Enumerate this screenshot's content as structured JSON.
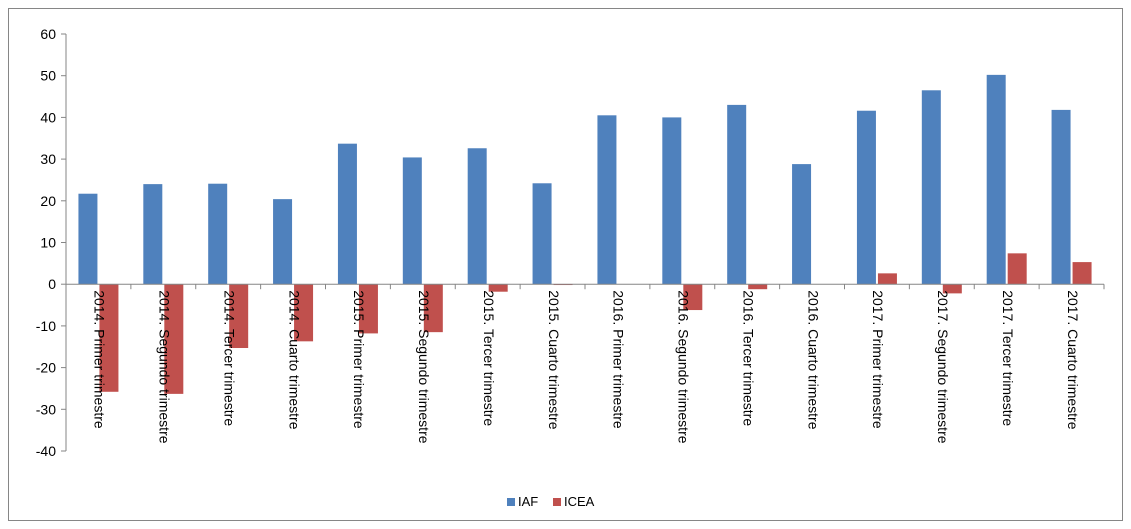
{
  "chart_data": {
    "type": "bar",
    "categories": [
      "2014. Primer trimestre",
      "2014. Segundo trimestre",
      "2014. Tercer trimestre",
      "2014. Cuarto trimestre",
      "2015. Primer trimestre",
      "2015. Segundo trimestre",
      "2015. Tercer trimestre",
      "2015. Cuarto trimestre",
      "2016. Primer trimestre",
      "2016. Segundo trimestre",
      "2016. Tercer trimestre",
      "2016. Cuarto trimestre",
      "2017. Primer trimestre",
      "2017. Segundo trimestre",
      "2017. Tercer trimestre",
      "2017. Cuarto trimestre"
    ],
    "series": [
      {
        "name": "IAF",
        "color": "#4f81bd",
        "values": [
          21.7,
          24.0,
          24.1,
          20.4,
          33.7,
          30.4,
          32.6,
          24.2,
          40.5,
          40.0,
          43.0,
          28.8,
          41.6,
          46.5,
          50.2,
          41.8
        ]
      },
      {
        "name": "ICEA",
        "color": "#c0504d",
        "values": [
          -25.8,
          -26.3,
          -15.3,
          -13.7,
          -11.8,
          -11.5,
          -1.8,
          -0.2,
          0.0,
          -6.2,
          -1.2,
          0.0,
          2.6,
          -2.2,
          7.4,
          5.3
        ]
      }
    ],
    "ylim": [
      -40,
      60
    ],
    "yticks": [
      60,
      50,
      40,
      30,
      20,
      10,
      0,
      -10,
      -20,
      -30,
      -40
    ],
    "grid": false,
    "legend_position": "bottom"
  }
}
